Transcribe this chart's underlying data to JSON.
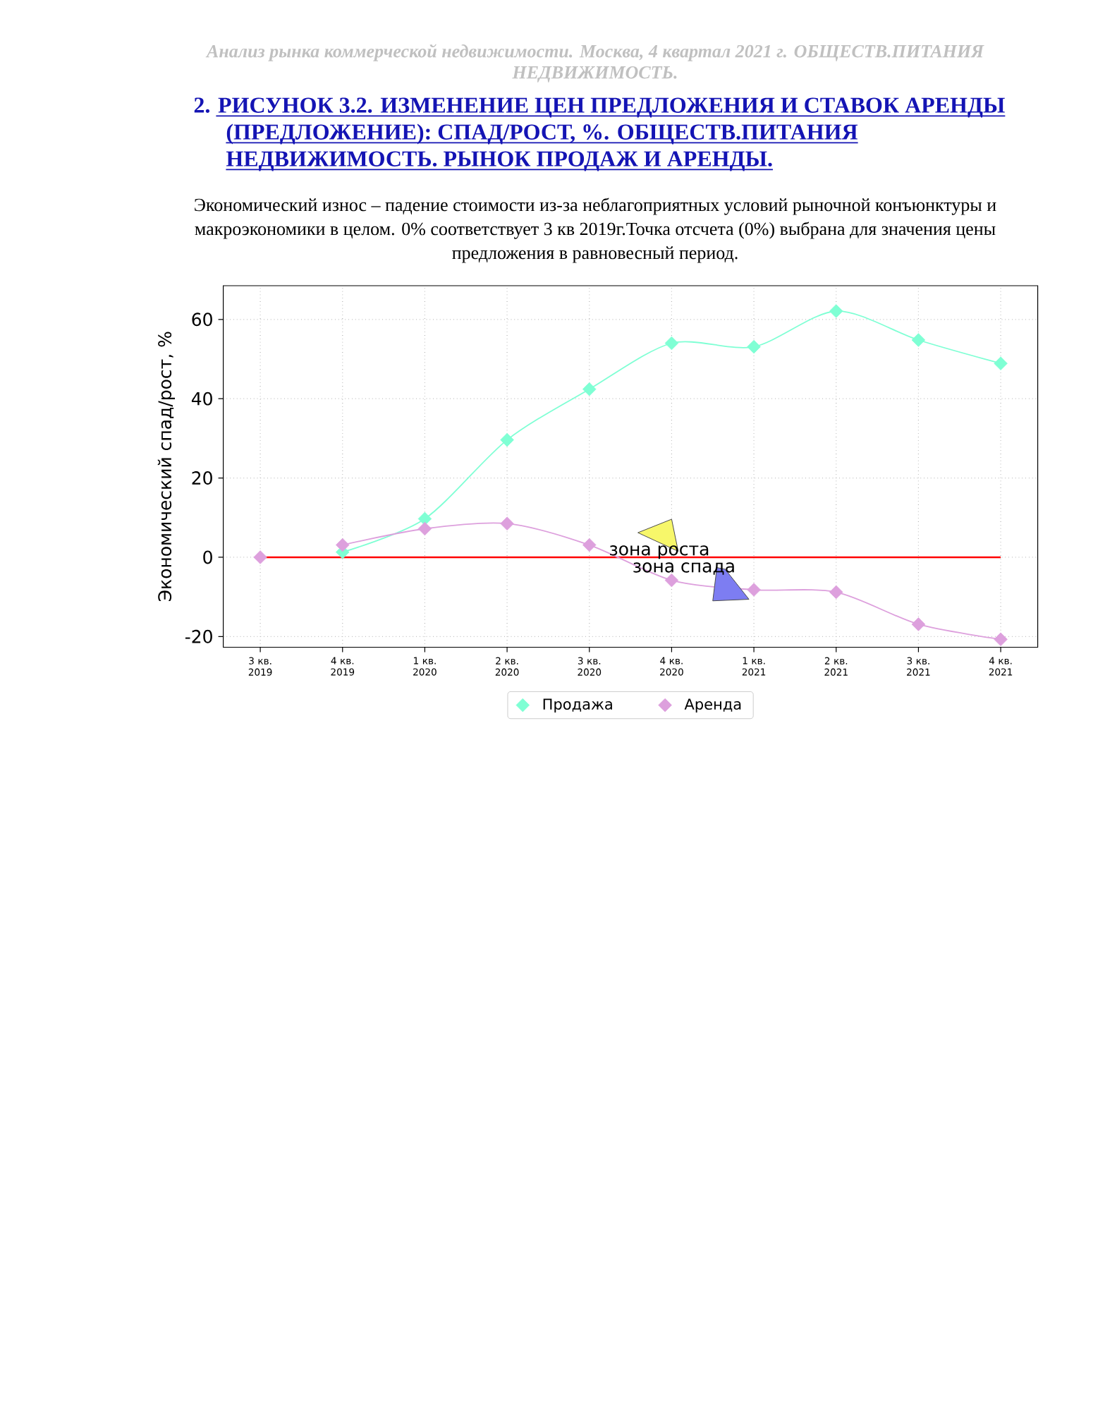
{
  "chart_data": {
    "type": "line",
    "title": "2. РИСУНОК 3.2. ИЗМЕНЕНИЕ ЦЕН ПРЕДЛОЖЕНИЯ И СТАВОК АРЕНДЫ (ПРЕДЛОЖЕНИЕ): СПАД/РОСТ, %. ОБЩЕСТВ.ПИТАНИЯ НЕДВИЖИМОСТЬ. РЫНОК ПРОДАЖ И АРЕНДЫ.",
    "subtitle": "Экономический износ – падение стоимости из-за неблагоприятных условий рыночной конъюнктуры и макроэкономики в целом. 0% соответствует 3 кв 2019г.Точка отсчета (0%) выбрана для значения цены предложения в равновесный период.",
    "ylabel": "Экономический спад/рост, %",
    "annotations": [
      "Анализ рынка коммерческой недвижимости. Москва, 4 квартал 2021 г. ОБЩЕСТВ.ПИТАНИЯ НЕДВИЖИМОСТЬ.",
      "зона роста",
      "зона спада"
    ],
    "categories": [
      "3 кв. 2019",
      "4 кв. 2019",
      "1 кв. 2020",
      "2 кв. 2020",
      "3 кв. 2020",
      "4 кв. 2020",
      "1 кв. 2021",
      "2 кв. 2021",
      "3 кв. 2021",
      "4 кв. 2021"
    ],
    "series": [
      {
        "name": "Продажа",
        "color": "#7fffd4",
        "values": [
          null,
          1.3,
          9.7,
          29.6,
          42.4,
          54.0,
          53.1,
          62.1,
          54.8,
          48.9
        ]
      },
      {
        "name": "Аренда",
        "color": "#dda0dd",
        "values": [
          null,
          3.1,
          7.2,
          8.5,
          3.1,
          -5.8,
          -8.2,
          -8.8,
          -16.9,
          -20.7
        ]
      },
      {
        "type": "scatter",
        "color": "#dda0dd",
        "values": [
          0,
          null,
          null,
          null,
          null,
          null,
          null,
          null,
          null,
          null
        ]
      }
    ],
    "ylim": [
      -22.7,
      68.5
    ],
    "yticks": [
      -20,
      0,
      20,
      40,
      60
    ],
    "ref_lines": [
      {
        "axis": "y",
        "value": 0,
        "color": "#ff0000"
      }
    ],
    "grid": true,
    "legend": "bottom",
    "marker": "diamond"
  }
}
